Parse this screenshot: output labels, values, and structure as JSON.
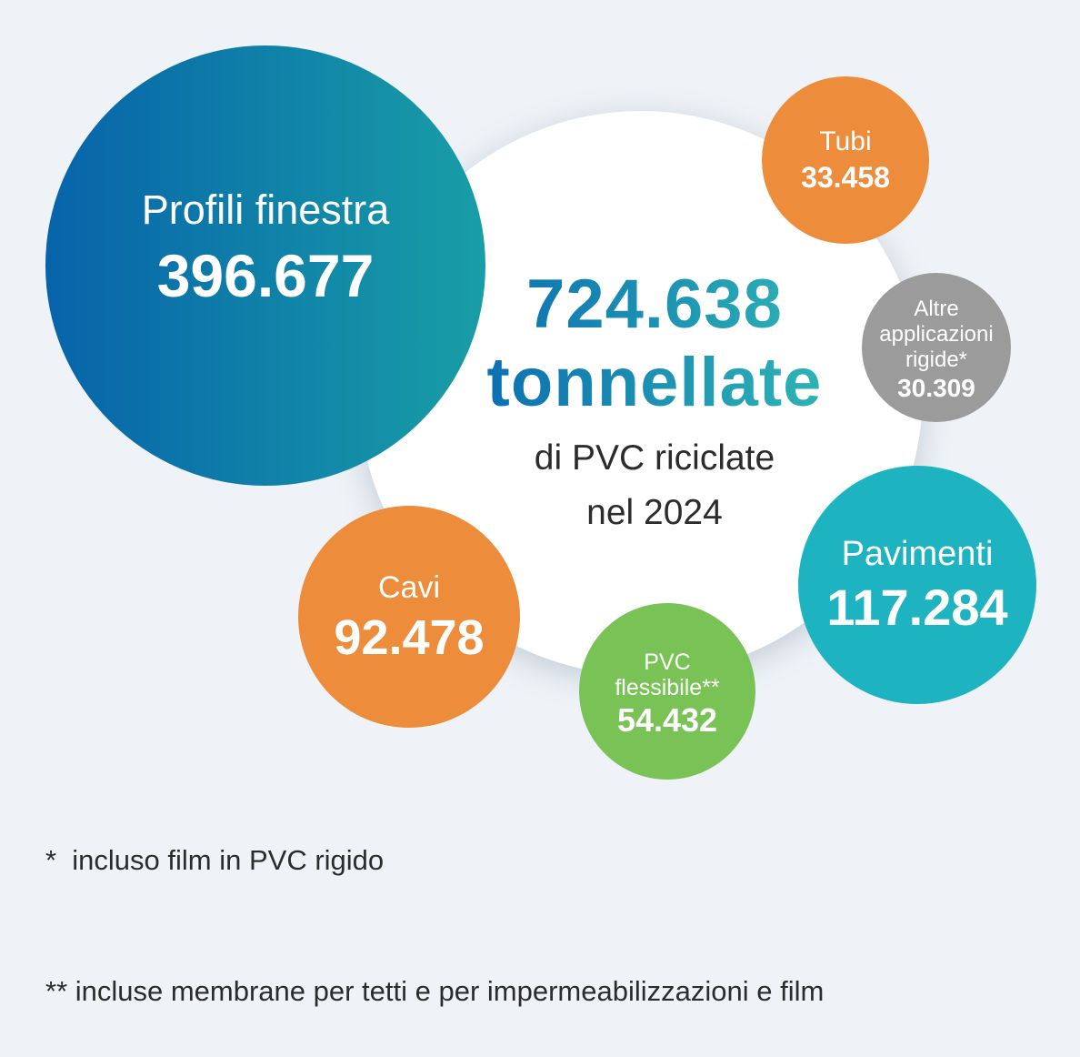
{
  "chart_data": {
    "type": "bubble",
    "total": {
      "value": "724.638",
      "unit": "tonnellate",
      "subtitle_line1": "di PVC riciclate",
      "subtitle_line2": "nel 2024"
    },
    "categories": [
      {
        "label": "Profili finestra",
        "value_text": "396.677",
        "value": 396677,
        "color": "#0a6db2"
      },
      {
        "label": "Tubi",
        "value_text": "33.458",
        "value": 33458,
        "color": "#ed8c3b"
      },
      {
        "label": "Altre applicazioni rigide*",
        "value_text": "30.309",
        "value": 30309,
        "color": "#9b9b9b"
      },
      {
        "label": "Pavimenti",
        "value_text": "117.284",
        "value": 117284,
        "color": "#1db3c1"
      },
      {
        "label": "PVC flessibile**",
        "value_text": "54.432",
        "value": 54432,
        "color": "#79c256"
      },
      {
        "label": "Cavi",
        "value_text": "92.478",
        "value": 92478,
        "color": "#ed8c3b"
      }
    ],
    "footnotes": [
      "*  incluso film in PVC rigido",
      "** incluse membrane per tetti e per impermeabilizzazioni e film"
    ]
  },
  "bubbles": {
    "profili": {
      "label": "Profili finestra",
      "value": "396.677"
    },
    "tubi": {
      "label": "Tubi",
      "value": "33.458"
    },
    "altre": {
      "label_line1": "Altre",
      "label_line2": "applicazioni",
      "label_line3": "rigide*",
      "value": "30.309"
    },
    "pavimenti": {
      "label": "Pavimenti",
      "value": "117.284"
    },
    "cavi": {
      "label": "Cavi",
      "value": "92.478"
    },
    "pvc": {
      "label_line1": "PVC",
      "label_line2": "flessibile**",
      "value": "54.432"
    }
  }
}
